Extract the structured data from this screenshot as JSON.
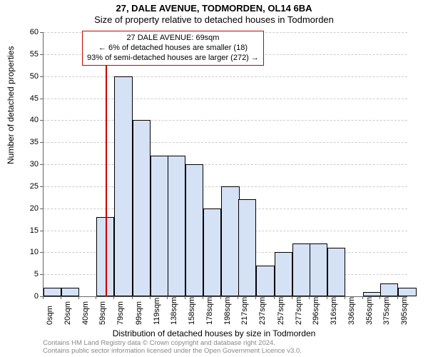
{
  "chart": {
    "type": "histogram",
    "title_main": "27, DALE AVENUE, TODMORDEN, OL14 6BA",
    "title_sub": "Size of property relative to detached houses in Todmorden",
    "ylabel": "Number of detached properties",
    "xlabel": "Distribution of detached houses by size in Todmorden",
    "title_fontsize": 13,
    "axis_label_fontsize": 12,
    "tick_fontsize": 11,
    "background_color": "#ffffff",
    "grid_color": "#cccccc",
    "axis_color": "#666666",
    "ylim": [
      0,
      60
    ],
    "ytick_step": 5,
    "xlim_sqm": [
      0,
      405
    ],
    "x_ticks": [
      "0sqm",
      "20sqm",
      "40sqm",
      "59sqm",
      "79sqm",
      "99sqm",
      "119sqm",
      "138sqm",
      "158sqm",
      "178sqm",
      "198sqm",
      "217sqm",
      "237sqm",
      "257sqm",
      "277sqm",
      "296sqm",
      "316sqm",
      "336sqm",
      "356sqm",
      "375sqm",
      "395sqm"
    ],
    "bar_color": "#d5e1f5",
    "bar_border_color": "#000000",
    "bars": [
      {
        "x_sqm": 0,
        "h": 2
      },
      {
        "x_sqm": 20,
        "h": 2
      },
      {
        "x_sqm": 40,
        "h": 0
      },
      {
        "x_sqm": 59,
        "h": 18
      },
      {
        "x_sqm": 79,
        "h": 50
      },
      {
        "x_sqm": 99,
        "h": 40
      },
      {
        "x_sqm": 119,
        "h": 32
      },
      {
        "x_sqm": 138,
        "h": 32
      },
      {
        "x_sqm": 158,
        "h": 30
      },
      {
        "x_sqm": 178,
        "h": 20
      },
      {
        "x_sqm": 198,
        "h": 25
      },
      {
        "x_sqm": 217,
        "h": 22
      },
      {
        "x_sqm": 237,
        "h": 7
      },
      {
        "x_sqm": 257,
        "h": 10
      },
      {
        "x_sqm": 277,
        "h": 12
      },
      {
        "x_sqm": 296,
        "h": 12
      },
      {
        "x_sqm": 316,
        "h": 11
      },
      {
        "x_sqm": 336,
        "h": 0
      },
      {
        "x_sqm": 356,
        "h": 1
      },
      {
        "x_sqm": 375,
        "h": 3
      },
      {
        "x_sqm": 395,
        "h": 2
      }
    ],
    "bar_width_sqm": 20,
    "marker": {
      "x_sqm": 69,
      "color": "#cc0000",
      "height_units": 60
    },
    "annotation": {
      "line1": "27 DALE AVENUE: 69sqm",
      "line2": "← 6% of detached houses are smaller (18)",
      "line3": "93% of semi-detached houses are larger (272) →",
      "border_color": "#cc0000",
      "bg_color": "#ffffff",
      "fontsize": 11
    }
  },
  "footer": {
    "line1": "Contains HM Land Registry data © Crown copyright and database right 2024.",
    "line2": "Contains public sector information licensed under the Open Government Licence v3.0.",
    "color": "#888888",
    "fontsize": 9.5
  }
}
